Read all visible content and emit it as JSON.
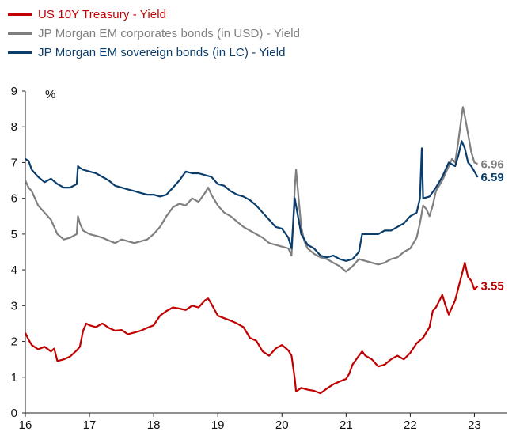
{
  "chart_data": {
    "type": "line",
    "title": "",
    "xlabel": "",
    "ylabel": "%",
    "xlim": [
      16,
      23.5
    ],
    "ylim": [
      0,
      9
    ],
    "x_ticks": [
      "16",
      "17",
      "18",
      "19",
      "20",
      "21",
      "22",
      "23"
    ],
    "y_ticks": [
      "0",
      "1",
      "2",
      "3",
      "4",
      "5",
      "6",
      "7",
      "8",
      "9"
    ],
    "grid": false,
    "legend_position": "top-left",
    "series": [
      {
        "name": "US 10Y Treasury - Yield",
        "color": "#c00000",
        "end_label": "3.55",
        "points": [
          [
            16.0,
            2.24
          ],
          [
            16.05,
            2.05
          ],
          [
            16.1,
            1.9
          ],
          [
            16.2,
            1.78
          ],
          [
            16.3,
            1.85
          ],
          [
            16.4,
            1.72
          ],
          [
            16.45,
            1.8
          ],
          [
            16.5,
            1.45
          ],
          [
            16.6,
            1.5
          ],
          [
            16.7,
            1.58
          ],
          [
            16.8,
            1.75
          ],
          [
            16.85,
            1.85
          ],
          [
            16.9,
            2.3
          ],
          [
            16.95,
            2.5
          ],
          [
            17.0,
            2.45
          ],
          [
            17.1,
            2.4
          ],
          [
            17.2,
            2.5
          ],
          [
            17.3,
            2.38
          ],
          [
            17.4,
            2.3
          ],
          [
            17.5,
            2.32
          ],
          [
            17.6,
            2.2
          ],
          [
            17.7,
            2.25
          ],
          [
            17.8,
            2.3
          ],
          [
            17.9,
            2.38
          ],
          [
            18.0,
            2.45
          ],
          [
            18.1,
            2.72
          ],
          [
            18.2,
            2.85
          ],
          [
            18.3,
            2.95
          ],
          [
            18.4,
            2.92
          ],
          [
            18.5,
            2.88
          ],
          [
            18.6,
            3.0
          ],
          [
            18.7,
            2.95
          ],
          [
            18.8,
            3.15
          ],
          [
            18.85,
            3.2
          ],
          [
            18.9,
            3.05
          ],
          [
            19.0,
            2.72
          ],
          [
            19.1,
            2.65
          ],
          [
            19.2,
            2.58
          ],
          [
            19.3,
            2.5
          ],
          [
            19.4,
            2.4
          ],
          [
            19.5,
            2.1
          ],
          [
            19.6,
            2.02
          ],
          [
            19.7,
            1.72
          ],
          [
            19.8,
            1.6
          ],
          [
            19.9,
            1.8
          ],
          [
            20.0,
            1.9
          ],
          [
            20.1,
            1.75
          ],
          [
            20.15,
            1.6
          ],
          [
            20.2,
            0.95
          ],
          [
            20.22,
            0.6
          ],
          [
            20.3,
            0.7
          ],
          [
            20.4,
            0.65
          ],
          [
            20.5,
            0.62
          ],
          [
            20.6,
            0.55
          ],
          [
            20.7,
            0.68
          ],
          [
            20.8,
            0.8
          ],
          [
            20.9,
            0.88
          ],
          [
            21.0,
            0.95
          ],
          [
            21.05,
            1.1
          ],
          [
            21.1,
            1.35
          ],
          [
            21.2,
            1.6
          ],
          [
            21.25,
            1.72
          ],
          [
            21.3,
            1.6
          ],
          [
            21.4,
            1.5
          ],
          [
            21.5,
            1.3
          ],
          [
            21.6,
            1.35
          ],
          [
            21.7,
            1.5
          ],
          [
            21.8,
            1.6
          ],
          [
            21.9,
            1.5
          ],
          [
            22.0,
            1.68
          ],
          [
            22.1,
            1.95
          ],
          [
            22.2,
            2.1
          ],
          [
            22.3,
            2.4
          ],
          [
            22.35,
            2.85
          ],
          [
            22.4,
            2.95
          ],
          [
            22.5,
            3.3
          ],
          [
            22.55,
            3.0
          ],
          [
            22.6,
            2.75
          ],
          [
            22.7,
            3.15
          ],
          [
            22.75,
            3.5
          ],
          [
            22.8,
            3.85
          ],
          [
            22.85,
            4.2
          ],
          [
            22.9,
            3.8
          ],
          [
            22.95,
            3.7
          ],
          [
            23.0,
            3.45
          ],
          [
            23.05,
            3.55
          ]
        ]
      },
      {
        "name": "JP Morgan EM corporates bonds (in USD) - Yield",
        "color": "#7f7f7f",
        "end_label": "6.96",
        "points": [
          [
            16.0,
            6.5
          ],
          [
            16.05,
            6.3
          ],
          [
            16.1,
            6.2
          ],
          [
            16.2,
            5.8
          ],
          [
            16.3,
            5.6
          ],
          [
            16.4,
            5.4
          ],
          [
            16.5,
            5.0
          ],
          [
            16.6,
            4.85
          ],
          [
            16.7,
            4.9
          ],
          [
            16.8,
            5.0
          ],
          [
            16.82,
            5.5
          ],
          [
            16.85,
            5.3
          ],
          [
            16.9,
            5.1
          ],
          [
            17.0,
            5.0
          ],
          [
            17.1,
            4.95
          ],
          [
            17.2,
            4.9
          ],
          [
            17.3,
            4.82
          ],
          [
            17.4,
            4.75
          ],
          [
            17.5,
            4.85
          ],
          [
            17.6,
            4.8
          ],
          [
            17.7,
            4.75
          ],
          [
            17.8,
            4.8
          ],
          [
            17.9,
            4.85
          ],
          [
            18.0,
            5.0
          ],
          [
            18.1,
            5.2
          ],
          [
            18.2,
            5.5
          ],
          [
            18.3,
            5.75
          ],
          [
            18.4,
            5.85
          ],
          [
            18.5,
            5.8
          ],
          [
            18.6,
            6.0
          ],
          [
            18.7,
            5.9
          ],
          [
            18.8,
            6.15
          ],
          [
            18.85,
            6.3
          ],
          [
            18.9,
            6.1
          ],
          [
            19.0,
            5.8
          ],
          [
            19.1,
            5.6
          ],
          [
            19.2,
            5.5
          ],
          [
            19.3,
            5.35
          ],
          [
            19.4,
            5.2
          ],
          [
            19.5,
            5.1
          ],
          [
            19.6,
            5.0
          ],
          [
            19.7,
            4.9
          ],
          [
            19.8,
            4.75
          ],
          [
            19.9,
            4.7
          ],
          [
            20.0,
            4.65
          ],
          [
            20.1,
            4.6
          ],
          [
            20.15,
            4.4
          ],
          [
            20.2,
            6.3
          ],
          [
            20.22,
            6.8
          ],
          [
            20.25,
            6.2
          ],
          [
            20.3,
            5.2
          ],
          [
            20.35,
            4.8
          ],
          [
            20.4,
            4.6
          ],
          [
            20.5,
            4.45
          ],
          [
            20.6,
            4.35
          ],
          [
            20.7,
            4.3
          ],
          [
            20.8,
            4.2
          ],
          [
            20.9,
            4.1
          ],
          [
            21.0,
            3.95
          ],
          [
            21.1,
            4.1
          ],
          [
            21.2,
            4.3
          ],
          [
            21.3,
            4.25
          ],
          [
            21.4,
            4.2
          ],
          [
            21.5,
            4.15
          ],
          [
            21.6,
            4.2
          ],
          [
            21.7,
            4.3
          ],
          [
            21.8,
            4.35
          ],
          [
            21.9,
            4.5
          ],
          [
            22.0,
            4.6
          ],
          [
            22.1,
            4.9
          ],
          [
            22.15,
            5.3
          ],
          [
            22.2,
            5.8
          ],
          [
            22.25,
            5.7
          ],
          [
            22.3,
            5.5
          ],
          [
            22.35,
            5.8
          ],
          [
            22.4,
            6.2
          ],
          [
            22.5,
            6.5
          ],
          [
            22.6,
            6.9
          ],
          [
            22.65,
            7.1
          ],
          [
            22.7,
            7.0
          ],
          [
            22.75,
            7.6
          ],
          [
            22.8,
            8.3
          ],
          [
            22.82,
            8.55
          ],
          [
            22.85,
            8.3
          ],
          [
            22.9,
            7.8
          ],
          [
            22.95,
            7.3
          ],
          [
            23.0,
            7.0
          ],
          [
            23.05,
            6.96
          ]
        ]
      },
      {
        "name": "JP Morgan EM sovereign bonds (in LC) - Yield",
        "color": "#0a3d6b",
        "end_label": "6.59",
        "points": [
          [
            16.0,
            7.1
          ],
          [
            16.05,
            7.05
          ],
          [
            16.1,
            6.8
          ],
          [
            16.2,
            6.6
          ],
          [
            16.3,
            6.45
          ],
          [
            16.4,
            6.55
          ],
          [
            16.5,
            6.4
          ],
          [
            16.6,
            6.3
          ],
          [
            16.7,
            6.3
          ],
          [
            16.8,
            6.4
          ],
          [
            16.82,
            6.9
          ],
          [
            16.85,
            6.85
          ],
          [
            16.9,
            6.8
          ],
          [
            17.0,
            6.75
          ],
          [
            17.1,
            6.7
          ],
          [
            17.2,
            6.6
          ],
          [
            17.3,
            6.5
          ],
          [
            17.4,
            6.35
          ],
          [
            17.5,
            6.3
          ],
          [
            17.6,
            6.25
          ],
          [
            17.7,
            6.2
          ],
          [
            17.8,
            6.15
          ],
          [
            17.9,
            6.1
          ],
          [
            18.0,
            6.1
          ],
          [
            18.1,
            6.05
          ],
          [
            18.2,
            6.1
          ],
          [
            18.3,
            6.3
          ],
          [
            18.4,
            6.5
          ],
          [
            18.5,
            6.75
          ],
          [
            18.6,
            6.7
          ],
          [
            18.7,
            6.7
          ],
          [
            18.8,
            6.65
          ],
          [
            18.9,
            6.6
          ],
          [
            19.0,
            6.4
          ],
          [
            19.1,
            6.35
          ],
          [
            19.2,
            6.2
          ],
          [
            19.3,
            6.1
          ],
          [
            19.4,
            6.05
          ],
          [
            19.5,
            5.95
          ],
          [
            19.6,
            5.8
          ],
          [
            19.7,
            5.6
          ],
          [
            19.8,
            5.4
          ],
          [
            19.9,
            5.2
          ],
          [
            20.0,
            5.15
          ],
          [
            20.1,
            4.9
          ],
          [
            20.15,
            4.6
          ],
          [
            20.2,
            6.0
          ],
          [
            20.25,
            5.5
          ],
          [
            20.3,
            5.0
          ],
          [
            20.4,
            4.7
          ],
          [
            20.5,
            4.6
          ],
          [
            20.6,
            4.4
          ],
          [
            20.7,
            4.35
          ],
          [
            20.8,
            4.4
          ],
          [
            20.9,
            4.3
          ],
          [
            21.0,
            4.25
          ],
          [
            21.1,
            4.3
          ],
          [
            21.2,
            4.5
          ],
          [
            21.25,
            5.0
          ],
          [
            21.3,
            5.0
          ],
          [
            21.4,
            5.0
          ],
          [
            21.5,
            5.0
          ],
          [
            21.6,
            5.1
          ],
          [
            21.7,
            5.1
          ],
          [
            21.8,
            5.2
          ],
          [
            21.9,
            5.3
          ],
          [
            22.0,
            5.5
          ],
          [
            22.1,
            5.6
          ],
          [
            22.15,
            6.0
          ],
          [
            22.18,
            7.4
          ],
          [
            22.2,
            6.0
          ],
          [
            22.3,
            6.05
          ],
          [
            22.4,
            6.3
          ],
          [
            22.5,
            6.6
          ],
          [
            22.6,
            7.0
          ],
          [
            22.7,
            6.9
          ],
          [
            22.75,
            7.2
          ],
          [
            22.8,
            7.6
          ],
          [
            22.85,
            7.4
          ],
          [
            22.9,
            7.0
          ],
          [
            22.95,
            6.9
          ],
          [
            23.0,
            6.75
          ],
          [
            23.05,
            6.59
          ]
        ]
      }
    ]
  }
}
